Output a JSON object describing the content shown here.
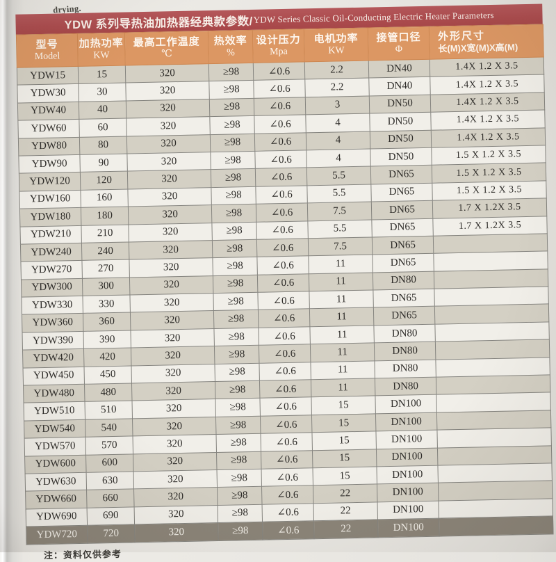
{
  "page": {
    "corner_text": "drying.",
    "footnote": "注：资料仅供参考"
  },
  "colors": {
    "title_bar": "#ac4c4e",
    "header_row": "#dc9763",
    "row_gray": "#d4d0c4",
    "row_light": "#f1efe9",
    "row_dark": "#8b8478",
    "cell_text": "#2e2c29"
  },
  "table": {
    "title_zh": "YDW 系列导热油加热器经典款参数/",
    "title_en": "YDW Series Classic Oil-Conducting Electric Heater Parameters",
    "col_keys": [
      "model",
      "heating-power",
      "max-temp",
      "efficiency",
      "design-pressure",
      "motor-power",
      "pipe-diameter",
      "dimensions"
    ],
    "columns": [
      {
        "zh": "型号",
        "sub": "Model"
      },
      {
        "zh": "加热功率",
        "sub": "KW"
      },
      {
        "zh": "最高工作温度",
        "sub": "℃"
      },
      {
        "zh": "热效率",
        "sub": "%"
      },
      {
        "zh": "设计压力",
        "sub": "Mpa"
      },
      {
        "zh": "电机功率",
        "sub": "KW"
      },
      {
        "zh": "接管口径",
        "sub": "Φ"
      },
      {
        "zh": "外形尺寸",
        "sub": "长(M)X宽(M)X高(M)"
      }
    ],
    "rows": [
      [
        "YDW15",
        "15",
        "320",
        "≥98",
        "∠0.6",
        "2.2",
        "DN40",
        "1.4X 1.2 X 3.5"
      ],
      [
        "YDW30",
        "30",
        "320",
        "≥98",
        "∠0.6",
        "2.2",
        "DN40",
        "1.4X 1.2 X 3.5"
      ],
      [
        "YDW40",
        "40",
        "320",
        "≥98",
        "∠0.6",
        "3",
        "DN50",
        "1.4X 1.2 X 3.5"
      ],
      [
        "YDW60",
        "60",
        "320",
        "≥98",
        "∠0.6",
        "4",
        "DN50",
        "1.4X 1.2 X 3.5"
      ],
      [
        "YDW80",
        "80",
        "320",
        "≥98",
        "∠0.6",
        "4",
        "DN50",
        "1.4X 1.2 X 3.5"
      ],
      [
        "YDW90",
        "90",
        "320",
        "≥98",
        "∠0.6",
        "4",
        "DN50",
        "1.5 X 1.2 X 3.5"
      ],
      [
        "YDW120",
        "120",
        "320",
        "≥98",
        "∠0.6",
        "5.5",
        "DN65",
        "1.5 X 1.2 X 3.5"
      ],
      [
        "YDW160",
        "160",
        "320",
        "≥98",
        "∠0.6",
        "5.5",
        "DN65",
        "1.5 X 1.2 X 3.5"
      ],
      [
        "YDW180",
        "180",
        "320",
        "≥98",
        "∠0.6",
        "7.5",
        "DN65",
        "1.7 X 1.2X 3.5"
      ],
      [
        "YDW210",
        "210",
        "320",
        "≥98",
        "∠0.6",
        "5.5",
        "DN65",
        "1.7 X 1.2X 3.5"
      ],
      [
        "YDW240",
        "240",
        "320",
        "≥98",
        "∠0.6",
        "7.5",
        "DN65",
        ""
      ],
      [
        "YDW270",
        "270",
        "320",
        "≥98",
        "∠0.6",
        "11",
        "DN65",
        ""
      ],
      [
        "YDW300",
        "300",
        "320",
        "≥98",
        "∠0.6",
        "11",
        "DN80",
        ""
      ],
      [
        "YDW330",
        "330",
        "320",
        "≥98",
        "∠0.6",
        "11",
        "DN65",
        ""
      ],
      [
        "YDW360",
        "360",
        "320",
        "≥98",
        "∠0.6",
        "11",
        "DN65",
        ""
      ],
      [
        "YDW390",
        "390",
        "320",
        "≥98",
        "∠0.6",
        "11",
        "DN80",
        ""
      ],
      [
        "YDW420",
        "420",
        "320",
        "≥98",
        "∠0.6",
        "11",
        "DN80",
        ""
      ],
      [
        "YDW450",
        "450",
        "320",
        "≥98",
        "∠0.6",
        "11",
        "DN80",
        ""
      ],
      [
        "YDW480",
        "480",
        "320",
        "≥98",
        "∠0.6",
        "11",
        "DN80",
        ""
      ],
      [
        "YDW510",
        "510",
        "320",
        "≥98",
        "∠0.6",
        "15",
        "DN100",
        ""
      ],
      [
        "YDW540",
        "540",
        "320",
        "≥98",
        "∠0.6",
        "15",
        "DN100",
        ""
      ],
      [
        "YDW570",
        "570",
        "320",
        "≥98",
        "∠0.6",
        "15",
        "DN100",
        ""
      ],
      [
        "YDW600",
        "600",
        "320",
        "≥98",
        "∠0.6",
        "15",
        "DN100",
        ""
      ],
      [
        "YDW630",
        "630",
        "320",
        "≥98",
        "∠0.6",
        "15",
        "DN100",
        ""
      ],
      [
        "YDW660",
        "660",
        "320",
        "≥98",
        "∠0.6",
        "22",
        "DN100",
        ""
      ],
      [
        "YDW690",
        "690",
        "320",
        "≥98",
        "∠0.6",
        "22",
        "DN100",
        ""
      ],
      [
        "YDW720",
        "720",
        "320",
        "≥98",
        "∠0.6",
        "22",
        "DN100",
        ""
      ]
    ]
  }
}
